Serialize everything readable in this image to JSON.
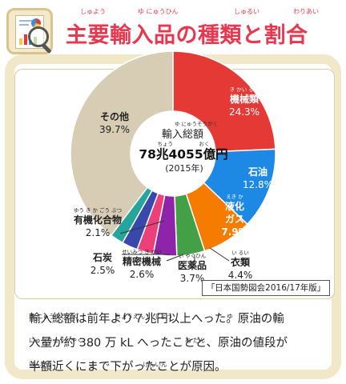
{
  "header": {
    "title": "主要輸入品の種類と割合",
    "furigana": [
      "しゅよう",
      "ゆ にゅうひん",
      "しゅるい",
      "わりあい"
    ]
  },
  "colors": {
    "title": "#e8384f",
    "panel_bg": "#f0e8c8",
    "machinery": "#e53935",
    "oil": "#1e88e5",
    "lng": "#f57c00",
    "clothing": "#43a047",
    "pharma": "#8e24aa",
    "precision": "#ec407a",
    "coal": "#3949ab",
    "organic": "#26a69a",
    "other": "#d7ccb4"
  },
  "chart_data": {
    "type": "pie",
    "style": "donut",
    "center": {
      "ruby": "ゆ にゅうそうがく",
      "label": "輸入総額",
      "value_ruby": "ちょう　　　　　おく",
      "value": "78兆4055億円",
      "year": "(2015年)"
    },
    "slices": [
      {
        "name": "機械類",
        "ruby": "き かい るい",
        "label": "24.3%",
        "value": 24.3,
        "color": "#e53935",
        "text_color": "#ffffff"
      },
      {
        "name": "石油",
        "ruby": "",
        "label": "12.8%",
        "value": 12.8,
        "color": "#1e88e5",
        "text_color": "#ffffff"
      },
      {
        "name": "液化ガス",
        "ruby": "えき か",
        "label": "7.9%",
        "value": 7.9,
        "color": "#f57c00",
        "text_color": "#ffffff"
      },
      {
        "name": "衣類",
        "ruby": "い るい",
        "label": "4.4%",
        "value": 4.4,
        "color": "#43a047",
        "text_color": "#222222"
      },
      {
        "name": "医薬品",
        "ruby": "い やくひん",
        "label": "3.7%",
        "value": 3.7,
        "color": "#8e24aa",
        "text_color": "#222222"
      },
      {
        "name": "精密機械",
        "ruby": "せいみつ き かい",
        "label": "2.6%",
        "value": 2.6,
        "color": "#ec407a",
        "text_color": "#222222"
      },
      {
        "name": "石炭",
        "ruby": "",
        "label": "2.5%",
        "value": 2.5,
        "color": "#3949ab",
        "text_color": "#222222"
      },
      {
        "name": "有機化合物",
        "ruby": "ゆう き か ごう ぶつ",
        "label": "2.1%",
        "value": 2.1,
        "color": "#26a69a",
        "text_color": "#222222"
      },
      {
        "name": "その他",
        "ruby": "",
        "label": "39.7%",
        "value": 39.7,
        "color": "#d7ccb4",
        "text_color": "#222222"
      }
    ],
    "source": "「日本国勢図会2016/17年版」"
  },
  "note": {
    "lines": [
      "輸入総額は前年より７兆円以上へった。原油の輸",
      "入量が約 380 万 kL へったことと、原油の値段が",
      "半額近くにまで下がったことが原因。"
    ],
    "ruby": [
      "ゆ にゅうそうがく　　　　　　ちょうえん い じょう　　　　　　　　　ゆ",
      "にゅうりょう　やく　　　　　　　　　　　　　　　　　ね だん",
      "はんがく　　　　　　さ　　　　　　　　げんいん"
    ]
  }
}
